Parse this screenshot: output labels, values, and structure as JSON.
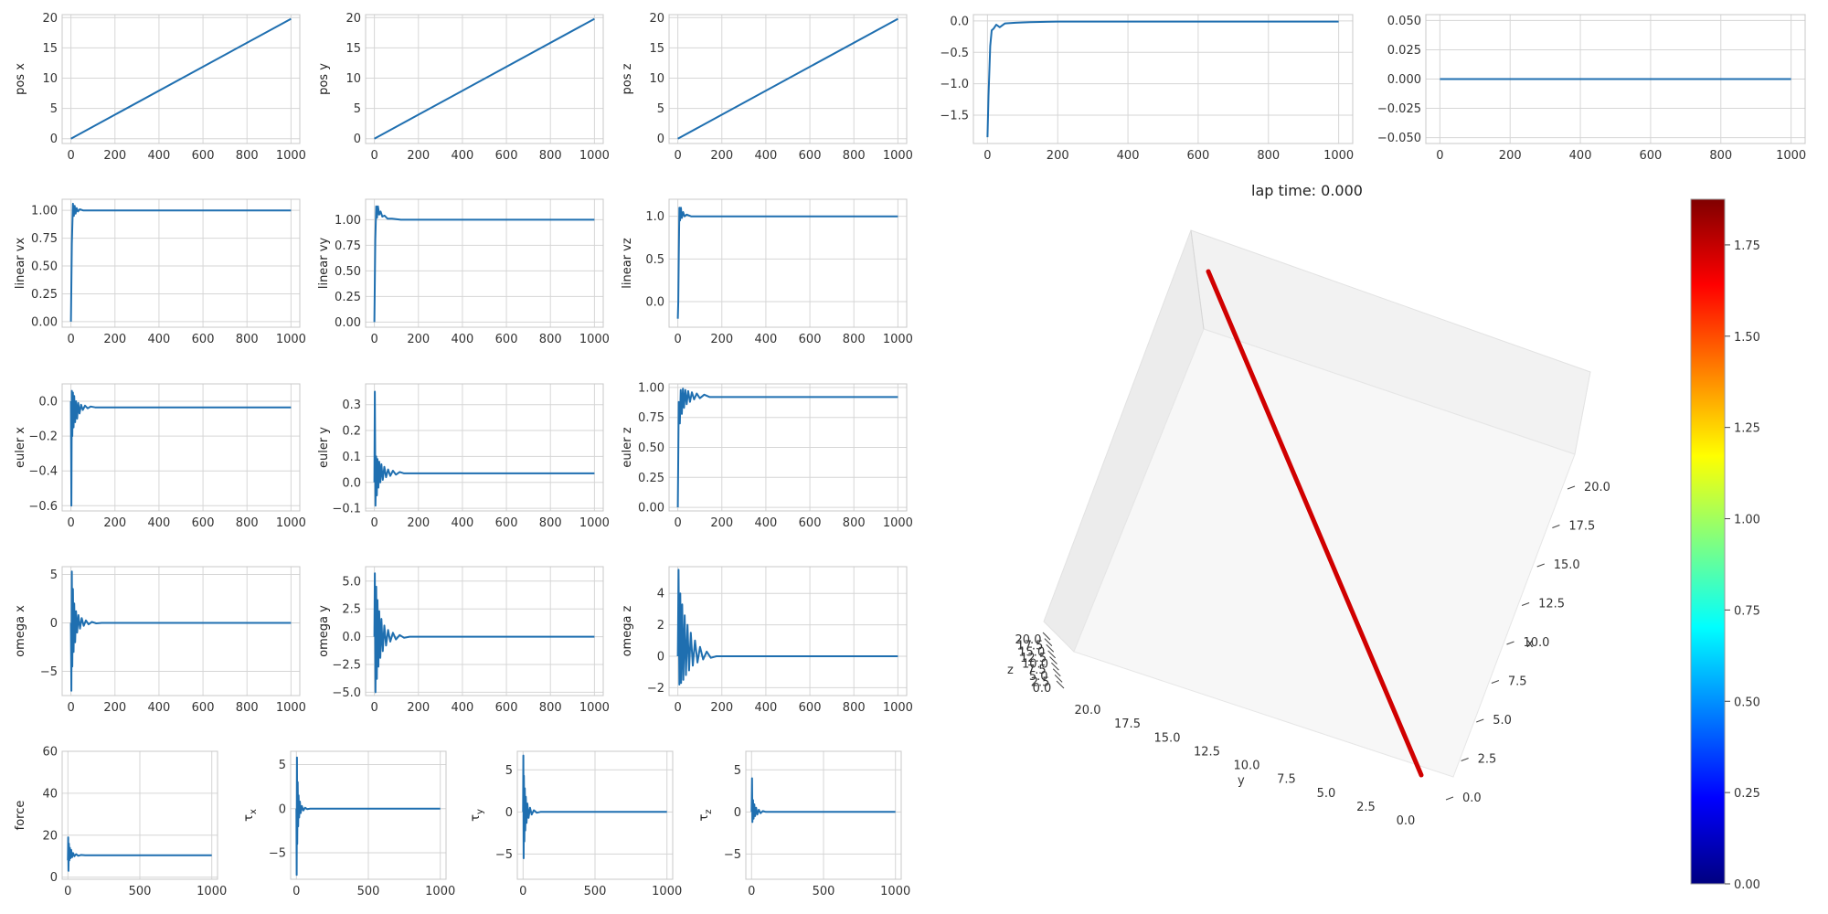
{
  "chart_data": [
    {
      "id": "pos-x",
      "type": "line",
      "ylabel": "pos x",
      "xlim": [
        -40,
        1040
      ],
      "ylim": [
        -0.8,
        20.5
      ],
      "xticks": [
        0,
        200,
        400,
        600,
        800,
        1000
      ],
      "yticks": [
        0,
        5,
        10,
        15,
        20
      ],
      "series": [
        {
          "color": "#1f6fb0",
          "x": [
            0,
            1000
          ],
          "y": [
            0,
            19.8
          ]
        }
      ]
    },
    {
      "id": "pos-y",
      "type": "line",
      "ylabel": "pos y",
      "xlim": [
        -40,
        1040
      ],
      "ylim": [
        -0.8,
        20.5
      ],
      "xticks": [
        0,
        200,
        400,
        600,
        800,
        1000
      ],
      "yticks": [
        0,
        5,
        10,
        15,
        20
      ],
      "series": [
        {
          "color": "#1f6fb0",
          "x": [
            0,
            1000
          ],
          "y": [
            0,
            19.8
          ]
        }
      ]
    },
    {
      "id": "pos-z",
      "type": "line",
      "ylabel": "pos z",
      "xlim": [
        -40,
        1040
      ],
      "ylim": [
        -0.8,
        20.5
      ],
      "xticks": [
        0,
        200,
        400,
        600,
        800,
        1000
      ],
      "yticks": [
        0,
        5,
        10,
        15,
        20
      ],
      "series": [
        {
          "color": "#1f6fb0",
          "x": [
            0,
            1000
          ],
          "y": [
            0,
            19.8
          ]
        }
      ]
    },
    {
      "id": "top-4",
      "type": "line",
      "ylabel": "",
      "xlim": [
        -40,
        1040
      ],
      "ylim": [
        -1.95,
        0.1
      ],
      "xticks": [
        0,
        200,
        400,
        600,
        800,
        1000
      ],
      "yticks": [
        0,
        -0.5,
        -1,
        -1.5
      ],
      "ytick_labels": [
        "0.0",
        "−0.5",
        "−1.0",
        "−1.5"
      ],
      "series": [
        {
          "color": "#1f6fb0",
          "x": [
            0,
            3,
            8,
            12,
            18,
            25,
            35,
            50,
            80,
            120,
            200,
            1000
          ],
          "y": [
            -1.85,
            -1.2,
            -0.4,
            -0.15,
            -0.12,
            -0.06,
            -0.1,
            -0.04,
            -0.03,
            -0.02,
            -0.01,
            -0.01
          ]
        }
      ]
    },
    {
      "id": "top-5",
      "type": "line",
      "ylabel": "",
      "xlim": [
        -40,
        1040
      ],
      "ylim": [
        -0.055,
        0.055
      ],
      "xticks": [
        0,
        200,
        400,
        600,
        800,
        1000
      ],
      "yticks": [
        0.05,
        0.025,
        0,
        -0.025,
        -0.05
      ],
      "ytick_labels": [
        "0.050",
        "0.025",
        "0.000",
        "−0.025",
        "−0.050"
      ],
      "series": [
        {
          "color": "#1f6fb0",
          "x": [
            0,
            1000
          ],
          "y": [
            0,
            0
          ]
        }
      ]
    },
    {
      "id": "linear-vx",
      "type": "line",
      "ylabel": "linear vx",
      "xlim": [
        -40,
        1040
      ],
      "ylim": [
        -0.05,
        1.1
      ],
      "xticks": [
        0,
        200,
        400,
        600,
        800,
        1000
      ],
      "yticks": [
        0,
        0.25,
        0.5,
        0.75,
        1
      ],
      "ytick_labels": [
        "0.00",
        "0.25",
        "0.50",
        "0.75",
        "1.00"
      ],
      "series": [
        {
          "color": "#1f6fb0",
          "x": [
            0,
            4,
            9,
            13,
            17,
            21,
            26,
            32,
            40,
            55,
            80,
            120,
            1000
          ],
          "y": [
            0,
            0.7,
            1.06,
            0.95,
            1.04,
            0.97,
            1.02,
            0.99,
            1.01,
            1.0,
            1.0,
            1.0,
            1.0
          ]
        }
      ]
    },
    {
      "id": "linear-vy",
      "type": "line",
      "ylabel": "linear vy",
      "xlim": [
        -40,
        1040
      ],
      "ylim": [
        -0.05,
        1.2
      ],
      "xticks": [
        0,
        200,
        400,
        600,
        800,
        1000
      ],
      "yticks": [
        0,
        0.25,
        0.5,
        0.75,
        1
      ],
      "ytick_labels": [
        "0.00",
        "0.25",
        "0.50",
        "0.75",
        "1.00"
      ],
      "series": [
        {
          "color": "#1f6fb0",
          "x": [
            0,
            4,
            8,
            12,
            16,
            22,
            28,
            36,
            46,
            60,
            80,
            120,
            1000
          ],
          "y": [
            0,
            0.8,
            1.13,
            1.02,
            1.13,
            1.05,
            1.08,
            1.03,
            1.04,
            1.01,
            1.01,
            1.0,
            1.0
          ]
        }
      ]
    },
    {
      "id": "linear-vz",
      "type": "line",
      "ylabel": "linear vz",
      "xlim": [
        -40,
        1040
      ],
      "ylim": [
        -0.3,
        1.2
      ],
      "xticks": [
        0,
        200,
        400,
        600,
        800,
        1000
      ],
      "yticks": [
        0,
        0.5,
        1
      ],
      "ytick_labels": [
        "0.0",
        "0.5",
        "1.0"
      ],
      "series": [
        {
          "color": "#1f6fb0",
          "x": [
            0,
            2,
            4,
            7,
            10,
            14,
            18,
            24,
            30,
            40,
            60,
            100,
            1000
          ],
          "y": [
            -0.2,
            0.0,
            0.5,
            1.1,
            0.95,
            1.1,
            0.98,
            1.05,
            1.0,
            1.02,
            1.0,
            1.0,
            1.0
          ]
        }
      ]
    },
    {
      "id": "euler-x",
      "type": "line",
      "ylabel": "euler x",
      "xlim": [
        -40,
        1040
      ],
      "ylim": [
        -0.63,
        0.1
      ],
      "xticks": [
        0,
        200,
        400,
        600,
        800,
        1000
      ],
      "yticks": [
        0,
        -0.2,
        -0.4,
        -0.6
      ],
      "ytick_labels": [
        "0.0",
        "−0.2",
        "−0.4",
        "−0.6"
      ],
      "series": [
        {
          "color": "#1f6fb0",
          "x": [
            0,
            2,
            4,
            6,
            9,
            12,
            15,
            19,
            23,
            28,
            33,
            39,
            46,
            54,
            64,
            76,
            90,
            110,
            140,
            1000
          ],
          "y": [
            0,
            -0.6,
            0.06,
            -0.2,
            0.05,
            -0.15,
            0.03,
            -0.12,
            0.0,
            -0.1,
            -0.01,
            -0.07,
            -0.02,
            -0.05,
            -0.025,
            -0.04,
            -0.03,
            -0.035,
            -0.035,
            -0.035
          ]
        }
      ]
    },
    {
      "id": "euler-y",
      "type": "line",
      "ylabel": "euler y",
      "xlim": [
        -40,
        1040
      ],
      "ylim": [
        -0.11,
        0.38
      ],
      "xticks": [
        0,
        200,
        400,
        600,
        800,
        1000
      ],
      "yticks": [
        -0.1,
        0,
        0.1,
        0.2,
        0.3
      ],
      "ytick_labels": [
        "−0.1",
        "0.0",
        "0.1",
        "0.2",
        "0.3"
      ],
      "series": [
        {
          "color": "#1f6fb0",
          "x": [
            0,
            2,
            5,
            8,
            11,
            14,
            18,
            22,
            27,
            32,
            38,
            45,
            53,
            62,
            72,
            84,
            98,
            115,
            135,
            160,
            1000
          ],
          "y": [
            0,
            0.35,
            -0.09,
            0.1,
            -0.05,
            0.09,
            -0.02,
            0.08,
            0.0,
            0.07,
            0.01,
            0.06,
            0.02,
            0.05,
            0.025,
            0.045,
            0.03,
            0.04,
            0.035,
            0.035,
            0.035
          ]
        }
      ]
    },
    {
      "id": "euler-z",
      "type": "line",
      "ylabel": "euler z",
      "xlim": [
        -40,
        1040
      ],
      "ylim": [
        -0.03,
        1.03
      ],
      "xticks": [
        0,
        200,
        400,
        600,
        800,
        1000
      ],
      "yticks": [
        0,
        0.25,
        0.5,
        0.75,
        1
      ],
      "ytick_labels": [
        "0.00",
        "0.25",
        "0.50",
        "0.75",
        "1.00"
      ],
      "series": [
        {
          "color": "#1f6fb0",
          "x": [
            0,
            4,
            9,
            13,
            18,
            23,
            28,
            34,
            40,
            47,
            55,
            64,
            74,
            86,
            100,
            120,
            145,
            180,
            1000
          ],
          "y": [
            0,
            0.88,
            0.7,
            0.98,
            0.78,
            0.99,
            0.83,
            0.98,
            0.86,
            0.97,
            0.88,
            0.96,
            0.9,
            0.95,
            0.91,
            0.94,
            0.92,
            0.92,
            0.92
          ]
        }
      ]
    },
    {
      "id": "omega-x",
      "type": "line",
      "ylabel": "omega x",
      "xlim": [
        -40,
        1040
      ],
      "ylim": [
        -7.5,
        5.8
      ],
      "xticks": [
        0,
        200,
        400,
        600,
        800,
        1000
      ],
      "yticks": [
        -5,
        0,
        5
      ],
      "ytick_labels": [
        "−5",
        "0",
        "5"
      ],
      "series": [
        {
          "color": "#1f6fb0",
          "x": [
            0,
            2,
            4,
            6,
            9,
            12,
            15,
            19,
            23,
            28,
            34,
            41,
            49,
            58,
            68,
            80,
            95,
            115,
            140,
            1000
          ],
          "y": [
            0,
            -7,
            5.3,
            -4.5,
            3.5,
            -3,
            2,
            -2,
            1.2,
            -1,
            0.8,
            -0.6,
            0.5,
            -0.3,
            0.25,
            -0.15,
            0.1,
            -0.05,
            0,
            0
          ]
        }
      ]
    },
    {
      "id": "omega-y",
      "type": "line",
      "ylabel": "omega y",
      "xlim": [
        -40,
        1040
      ],
      "ylim": [
        -5.3,
        6.3
      ],
      "xticks": [
        0,
        200,
        400,
        600,
        800,
        1000
      ],
      "yticks": [
        -5,
        -2.5,
        0,
        2.5,
        5
      ],
      "ytick_labels": [
        "−5.0",
        "−2.5",
        "0.0",
        "2.5",
        "5.0"
      ],
      "series": [
        {
          "color": "#1f6fb0",
          "x": [
            0,
            2,
            5,
            8,
            11,
            14,
            18,
            22,
            27,
            32,
            38,
            45,
            53,
            62,
            72,
            84,
            98,
            115,
            135,
            160,
            1000
          ],
          "y": [
            0,
            5.7,
            -5.0,
            4.5,
            -3.8,
            3.3,
            -2.7,
            2.3,
            -1.9,
            1.6,
            -1.3,
            1.0,
            -0.8,
            0.6,
            -0.45,
            0.35,
            -0.25,
            0.15,
            -0.1,
            0,
            0
          ]
        }
      ]
    },
    {
      "id": "omega-z",
      "type": "line",
      "ylabel": "omega z",
      "xlim": [
        -40,
        1040
      ],
      "ylim": [
        -2.5,
        5.7
      ],
      "xticks": [
        0,
        200,
        400,
        600,
        800,
        1000
      ],
      "yticks": [
        -2,
        0,
        2,
        4
      ],
      "ytick_labels": [
        "−2",
        "0",
        "2",
        "4"
      ],
      "series": [
        {
          "color": "#1f6fb0",
          "x": [
            0,
            3,
            7,
            11,
            15,
            20,
            25,
            31,
            37,
            44,
            51,
            59,
            68,
            78,
            89,
            101,
            115,
            131,
            150,
            175,
            1000
          ],
          "y": [
            0,
            5.5,
            -1.8,
            4.0,
            -1.7,
            3.3,
            -1.5,
            2.6,
            -1.2,
            2.0,
            -0.9,
            1.5,
            -0.6,
            1.0,
            -0.4,
            0.6,
            -0.2,
            0.3,
            -0.1,
            0,
            0
          ]
        }
      ]
    },
    {
      "id": "force",
      "type": "line",
      "ylabel": "force",
      "xlim": [
        -40,
        1040
      ],
      "ylim": [
        -1,
        60
      ],
      "xticks": [
        0,
        500,
        1000
      ],
      "yticks": [
        0,
        20,
        40,
        60
      ],
      "series": [
        {
          "color": "#1f6fb0",
          "x": [
            0,
            2,
            4,
            7,
            10,
            14,
            18,
            23,
            29,
            36,
            45,
            57,
            72,
            90,
            120,
            1000
          ],
          "y": [
            8,
            19,
            3,
            16,
            8,
            14,
            9,
            13,
            9.5,
            11.5,
            10,
            11,
            10.2,
            10.6,
            10.4,
            10.4
          ]
        }
      ]
    },
    {
      "id": "tau-x",
      "type": "line",
      "ylabel": "τx",
      "ylabel_main": "τ",
      "ylabel_sub": "x",
      "xlim": [
        -40,
        1040
      ],
      "ylim": [
        -8,
        6.5
      ],
      "xticks": [
        0,
        500,
        1000
      ],
      "yticks": [
        -5,
        0,
        5
      ],
      "ytick_labels": [
        "−5",
        "0",
        "5"
      ],
      "series": [
        {
          "color": "#1f6fb0",
          "x": [
            0,
            2,
            4,
            6,
            9,
            12,
            15,
            19,
            24,
            30,
            38,
            48,
            60,
            75,
            95,
            1000
          ],
          "y": [
            0,
            -7.5,
            5.8,
            -4,
            3,
            -2,
            1.5,
            -1,
            0.8,
            -0.5,
            0.3,
            -0.2,
            0.1,
            -0.05,
            0,
            0
          ]
        }
      ]
    },
    {
      "id": "tau-y",
      "type": "line",
      "ylabel": "τy",
      "ylabel_main": "τ",
      "ylabel_sub": "y",
      "xlim": [
        -40,
        1040
      ],
      "ylim": [
        -8,
        7.2
      ],
      "xticks": [
        0,
        500,
        1000
      ],
      "yticks": [
        -5,
        0,
        5
      ],
      "ytick_labels": [
        "−5",
        "0",
        "5"
      ],
      "series": [
        {
          "color": "#1f6fb0",
          "x": [
            0,
            2,
            4,
            6,
            9,
            12,
            15,
            19,
            24,
            30,
            38,
            48,
            60,
            75,
            95,
            120,
            1000
          ],
          "y": [
            0,
            6.7,
            -5.5,
            4.3,
            -3.5,
            2.8,
            -2.2,
            1.8,
            -1.3,
            1,
            -0.7,
            0.5,
            -0.3,
            0.2,
            -0.1,
            0,
            0
          ]
        }
      ]
    },
    {
      "id": "tau-z",
      "type": "line",
      "ylabel": "τz",
      "ylabel_main": "τ",
      "ylabel_sub": "z",
      "xlim": [
        -40,
        1040
      ],
      "ylim": [
        -8,
        7.2
      ],
      "xticks": [
        0,
        500,
        1000
      ],
      "yticks": [
        -5,
        0,
        5
      ],
      "ytick_labels": [
        "−5",
        "0",
        "5"
      ],
      "series": [
        {
          "color": "#1f6fb0",
          "x": [
            0,
            3,
            6,
            10,
            14,
            19,
            25,
            32,
            40,
            50,
            62,
            78,
            100,
            1000
          ],
          "y": [
            0,
            4,
            -1.2,
            1.4,
            -0.8,
            0.9,
            -0.5,
            0.5,
            -0.3,
            0.25,
            -0.15,
            0.1,
            0,
            0
          ]
        }
      ]
    },
    {
      "id": "traj-3d",
      "type": "line3d",
      "title": "lap time: 0.000",
      "x_label": "x",
      "y_label": "y",
      "z_label": "z",
      "x_ticks": [
        "0.0",
        "2.5",
        "5.0",
        "7.5",
        "10.0",
        "12.5",
        "15.0",
        "17.5",
        "20.0"
      ],
      "y_ticks": [
        "20.0",
        "17.5",
        "15.0",
        "12.5",
        "10.0",
        "7.5",
        "5.0",
        "2.5",
        "0.0"
      ],
      "z_ticks": [
        "20.0",
        "17.5",
        "15.0",
        "12.5",
        "10.0",
        "7.5",
        "5.0",
        "2.5",
        "0.0"
      ],
      "line_color": "#d00000",
      "start": [
        0,
        0,
        0
      ],
      "end": [
        19.8,
        19.8,
        19.8
      ]
    },
    {
      "id": "colorbar",
      "type": "colorbar",
      "colormap": "jet",
      "range": [
        0,
        1.875
      ],
      "ticks": [
        "0.00",
        "0.25",
        "0.50",
        "0.75",
        "1.00",
        "1.25",
        "1.50",
        "1.75"
      ]
    }
  ]
}
